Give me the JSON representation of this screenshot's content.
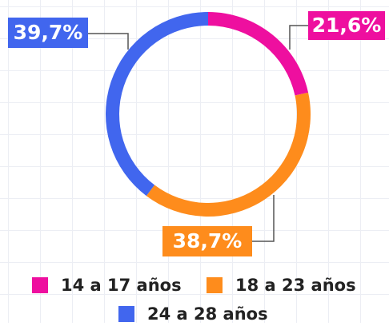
{
  "chart_data": {
    "type": "donut",
    "categories": [
      "14 a 17 años",
      "18 a 23 años",
      "24 a 28 años"
    ],
    "values": [
      21.6,
      38.7,
      39.7
    ],
    "value_labels": [
      "21,6%",
      "38,7%",
      "39,7%"
    ],
    "colors": [
      "#ee0f9f",
      "#fe8c1c",
      "#4166ee"
    ]
  }
}
